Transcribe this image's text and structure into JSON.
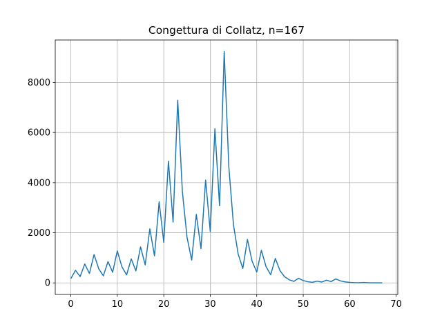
{
  "chart_data": {
    "type": "line",
    "title": "Congettura di Collatz, n=167",
    "x": [
      0,
      1,
      2,
      3,
      4,
      5,
      6,
      7,
      8,
      9,
      10,
      11,
      12,
      13,
      14,
      15,
      16,
      17,
      18,
      19,
      20,
      21,
      22,
      23,
      24,
      25,
      26,
      27,
      28,
      29,
      30,
      31,
      32,
      33,
      34,
      35,
      36,
      37,
      38,
      39,
      40,
      41,
      42,
      43,
      44,
      45,
      46,
      47,
      48,
      49,
      50,
      51,
      52,
      53,
      54,
      55,
      56,
      57,
      58,
      59,
      60,
      61,
      62,
      63,
      64,
      65,
      66,
      67
    ],
    "series": [
      {
        "color": "#1f77b4",
        "values": [
          167,
          502,
          251,
          754,
          377,
          1132,
          566,
          283,
          850,
          425,
          1276,
          638,
          319,
          958,
          479,
          1438,
          719,
          2158,
          1079,
          3238,
          1619,
          4858,
          2429,
          7288,
          3644,
          1822,
          911,
          2734,
          1367,
          4102,
          2051,
          6154,
          3077,
          9232,
          4616,
          2308,
          1154,
          577,
          1732,
          866,
          433,
          1300,
          650,
          325,
          976,
          488,
          244,
          122,
          61,
          184,
          92,
          46,
          23,
          70,
          35,
          106,
          53,
          160,
          80,
          40,
          20,
          10,
          5,
          16,
          8,
          4,
          2,
          1
        ]
      }
    ],
    "xlim": [
      -3.35,
      70.35
    ],
    "xticks": [
      0,
      10,
      20,
      30,
      40,
      50,
      60,
      70
    ],
    "ylim": [
      -461.55,
      9693.55
    ],
    "yticks": [
      0,
      2000,
      4000,
      6000,
      8000
    ],
    "grid": true
  }
}
